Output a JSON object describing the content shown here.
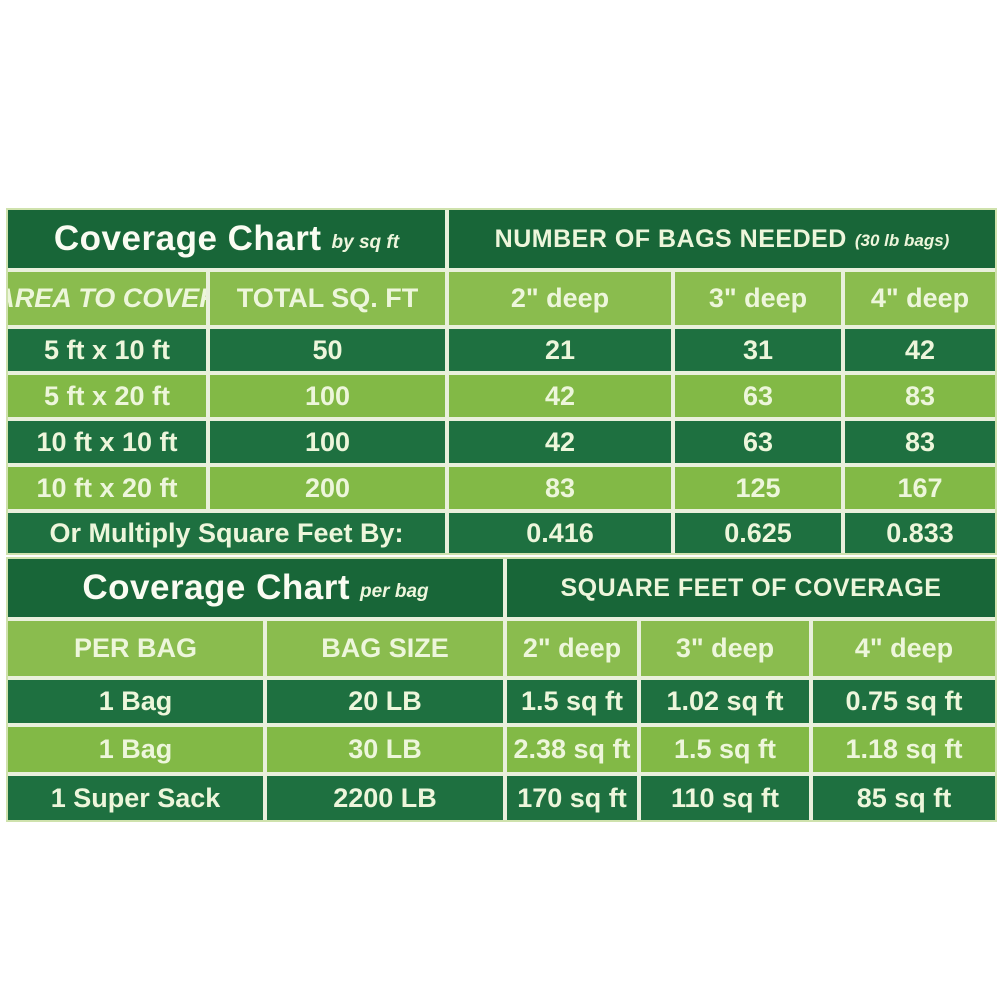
{
  "colors": {
    "title_bg": "#186638",
    "column_header_bg": "#8abc4e",
    "row_dark_bg": "#1e7040",
    "row_light_bg": "#82b946",
    "gridline": "#e9f0dc",
    "text": "#edf6db",
    "page_bg": "#ffffff"
  },
  "chart_data": [
    {
      "type": "table",
      "title": "Coverage Chart",
      "title_note": "by sq ft",
      "group_header": "NUMBER OF BAGS NEEDED",
      "group_header_note": "(30 lb bags)",
      "columns": [
        "AREA TO COVER",
        "TOTAL SQ. FT",
        "2\" deep",
        "3\" deep",
        "4\" deep"
      ],
      "rows": [
        [
          "5 ft x 10 ft",
          "50",
          "21",
          "31",
          "42"
        ],
        [
          "5 ft x 20 ft",
          "100",
          "42",
          "63",
          "83"
        ],
        [
          "10 ft x 10 ft",
          "100",
          "42",
          "63",
          "83"
        ],
        [
          "10 ft x 20 ft",
          "200",
          "83",
          "125",
          "167"
        ]
      ],
      "footer_row": [
        "Or Multiply Square Feet By:",
        "0.416",
        "0.625",
        "0.833"
      ]
    },
    {
      "type": "table",
      "title": "Coverage Chart",
      "title_note": "per bag",
      "group_header": "SQUARE FEET OF COVERAGE",
      "group_header_note": "",
      "columns": [
        "PER BAG",
        "BAG SIZE",
        "2\" deep",
        "3\" deep",
        "4\" deep"
      ],
      "rows": [
        [
          "1 Bag",
          "20 LB",
          "1.5 sq ft",
          "1.02 sq ft",
          "0.75 sq ft"
        ],
        [
          "1 Bag",
          "30 LB",
          "2.38 sq ft",
          "1.5 sq ft",
          "1.18 sq ft"
        ],
        [
          "1 Super Sack",
          "2200 LB",
          "170 sq ft",
          "110 sq ft",
          "85 sq ft"
        ]
      ]
    }
  ]
}
